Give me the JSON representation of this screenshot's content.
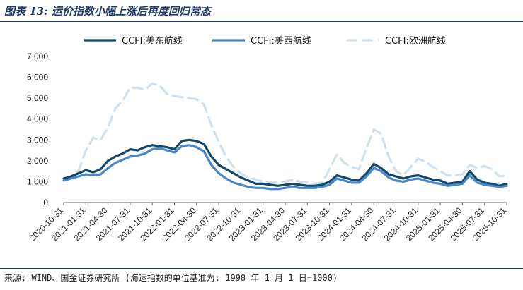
{
  "title": "图表 13:  运价指数小幅上涨后再度回归常态",
  "source": "来源: WIND、国金证券研究所 (海运指数的单位基准为: 1998 年 1 月 1 日=1000)",
  "chart_data": {
    "type": "line",
    "title": "图表 13:  运价指数小幅上涨后再度回归常态",
    "xlabel": "",
    "ylabel": "",
    "ylim": [
      0,
      7000
    ],
    "yticks": [
      0,
      1000,
      2000,
      3000,
      4000,
      5000,
      6000,
      7000
    ],
    "ytick_labels": [
      "0",
      "1,000",
      "2,000",
      "3,000",
      "4,000",
      "5,000",
      "6,000",
      "7,000"
    ],
    "xlim": [
      0,
      60
    ],
    "xtick_labels": [
      "2020-10-31",
      "2021-01-31",
      "2021-04-30",
      "2021-07-31",
      "2021-10-31",
      "2022-01-31",
      "2022-04-30",
      "2022-07-31",
      "2022-10-31",
      "2023-01-31",
      "2023-04-30",
      "2023-07-31",
      "2023-10-31",
      "2024-01-31",
      "2024-04-30",
      "2024-07-31",
      "2024-10-31",
      "2025-01-31",
      "2025-04-30",
      "2025-07-31",
      "2025-10-31"
    ],
    "grid": false,
    "legend": "top",
    "series": [
      {
        "name": "CCFI:美东航线",
        "color": "#10476b",
        "style": "solid",
        "width": 3.2,
        "points": [
          [
            0,
            1150
          ],
          [
            1,
            1250
          ],
          [
            2,
            1400
          ],
          [
            3,
            1550
          ],
          [
            4,
            1450
          ],
          [
            5,
            1600
          ],
          [
            6,
            2000
          ],
          [
            7,
            2200
          ],
          [
            8,
            2350
          ],
          [
            9,
            2550
          ],
          [
            10,
            2500
          ],
          [
            11,
            2650
          ],
          [
            12,
            2750
          ],
          [
            13,
            2700
          ],
          [
            14,
            2650
          ],
          [
            15,
            2550
          ],
          [
            16,
            2950
          ],
          [
            17,
            3000
          ],
          [
            18,
            2950
          ],
          [
            19,
            2800
          ],
          [
            20,
            2200
          ],
          [
            21,
            1800
          ],
          [
            22,
            1600
          ],
          [
            23,
            1400
          ],
          [
            24,
            1200
          ],
          [
            25,
            1050
          ],
          [
            26,
            900
          ],
          [
            27,
            900
          ],
          [
            28,
            850
          ],
          [
            29,
            800
          ],
          [
            30,
            850
          ],
          [
            31,
            900
          ],
          [
            32,
            850
          ],
          [
            33,
            800
          ],
          [
            34,
            800
          ],
          [
            35,
            850
          ],
          [
            36,
            1000
          ],
          [
            37,
            1300
          ],
          [
            38,
            1200
          ],
          [
            39,
            1100
          ],
          [
            40,
            1050
          ],
          [
            41,
            1400
          ],
          [
            42,
            1850
          ],
          [
            43,
            1650
          ],
          [
            44,
            1350
          ],
          [
            45,
            1250
          ],
          [
            46,
            1150
          ],
          [
            47,
            1250
          ],
          [
            48,
            1300
          ],
          [
            49,
            1200
          ],
          [
            50,
            1100
          ],
          [
            51,
            1050
          ],
          [
            52,
            900
          ],
          [
            53,
            950
          ],
          [
            54,
            1000
          ],
          [
            55,
            1500
          ],
          [
            56,
            1100
          ],
          [
            57,
            950
          ],
          [
            58,
            900
          ],
          [
            59,
            800
          ],
          [
            60,
            900
          ]
        ]
      },
      {
        "name": "CCFI:美西航线",
        "color": "#4a86c8",
        "style": "solid",
        "width": 3.2,
        "points": [
          [
            0,
            1050
          ],
          [
            1,
            1150
          ],
          [
            2,
            1250
          ],
          [
            3,
            1350
          ],
          [
            4,
            1300
          ],
          [
            5,
            1350
          ],
          [
            6,
            1650
          ],
          [
            7,
            1900
          ],
          [
            8,
            2050
          ],
          [
            9,
            2200
          ],
          [
            10,
            2250
          ],
          [
            11,
            2350
          ],
          [
            12,
            2550
          ],
          [
            13,
            2600
          ],
          [
            14,
            2500
          ],
          [
            15,
            2400
          ],
          [
            16,
            2700
          ],
          [
            17,
            2750
          ],
          [
            18,
            2650
          ],
          [
            19,
            2450
          ],
          [
            20,
            1800
          ],
          [
            21,
            1400
          ],
          [
            22,
            1150
          ],
          [
            23,
            950
          ],
          [
            24,
            850
          ],
          [
            25,
            750
          ],
          [
            26,
            700
          ],
          [
            27,
            700
          ],
          [
            28,
            650
          ],
          [
            29,
            650
          ],
          [
            30,
            700
          ],
          [
            31,
            750
          ],
          [
            32,
            700
          ],
          [
            33,
            700
          ],
          [
            34,
            700
          ],
          [
            35,
            750
          ],
          [
            36,
            850
          ],
          [
            37,
            1150
          ],
          [
            38,
            1050
          ],
          [
            39,
            950
          ],
          [
            40,
            950
          ],
          [
            41,
            1250
          ],
          [
            42,
            1650
          ],
          [
            43,
            1500
          ],
          [
            44,
            1200
          ],
          [
            45,
            1050
          ],
          [
            46,
            1000
          ],
          [
            47,
            1100
          ],
          [
            48,
            1150
          ],
          [
            49,
            1050
          ],
          [
            50,
            950
          ],
          [
            51,
            900
          ],
          [
            52,
            800
          ],
          [
            53,
            850
          ],
          [
            54,
            900
          ],
          [
            55,
            1300
          ],
          [
            56,
            950
          ],
          [
            57,
            850
          ],
          [
            58,
            800
          ],
          [
            59,
            750
          ],
          [
            60,
            800
          ]
        ]
      },
      {
        "name": "CCFI:欧洲航线",
        "color": "#cfe0ee",
        "style": "dashed",
        "width": 3.2,
        "points": [
          [
            0,
            1150
          ],
          [
            1,
            1250
          ],
          [
            2,
            1500
          ],
          [
            3,
            2500
          ],
          [
            4,
            3100
          ],
          [
            5,
            3000
          ],
          [
            6,
            3600
          ],
          [
            7,
            4500
          ],
          [
            8,
            4900
          ],
          [
            9,
            5500
          ],
          [
            10,
            5500
          ],
          [
            11,
            5400
          ],
          [
            12,
            5700
          ],
          [
            13,
            5600
          ],
          [
            14,
            5200
          ],
          [
            15,
            5100
          ],
          [
            16,
            5050
          ],
          [
            17,
            5000
          ],
          [
            18,
            4950
          ],
          [
            19,
            4700
          ],
          [
            20,
            3700
          ],
          [
            21,
            2900
          ],
          [
            22,
            2200
          ],
          [
            23,
            1700
          ],
          [
            24,
            1400
          ],
          [
            25,
            1200
          ],
          [
            26,
            1100
          ],
          [
            27,
            1000
          ],
          [
            28,
            950
          ],
          [
            29,
            950
          ],
          [
            30,
            1000
          ],
          [
            31,
            1100
          ],
          [
            32,
            1000
          ],
          [
            33,
            950
          ],
          [
            34,
            900
          ],
          [
            35,
            950
          ],
          [
            36,
            1600
          ],
          [
            37,
            2300
          ],
          [
            38,
            1900
          ],
          [
            39,
            1700
          ],
          [
            40,
            1600
          ],
          [
            41,
            2600
          ],
          [
            42,
            3500
          ],
          [
            43,
            3300
          ],
          [
            44,
            2200
          ],
          [
            45,
            1500
          ],
          [
            46,
            1300
          ],
          [
            47,
            1700
          ],
          [
            48,
            2100
          ],
          [
            49,
            1950
          ],
          [
            50,
            1700
          ],
          [
            51,
            1500
          ],
          [
            52,
            1300
          ],
          [
            53,
            1300
          ],
          [
            54,
            1350
          ],
          [
            55,
            1800
          ],
          [
            56,
            1650
          ],
          [
            57,
            1750
          ],
          [
            58,
            1600
          ],
          [
            59,
            1250
          ],
          [
            60,
            1300
          ]
        ]
      }
    ]
  }
}
